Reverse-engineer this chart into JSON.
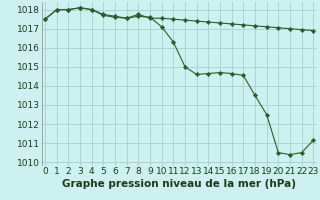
{
  "title": "Graphe pression niveau de la mer (hPa)",
  "background_color": "#cff0f0",
  "grid_color": "#aad4d4",
  "line_color": "#2d5a2d",
  "marker_color": "#2d5a2d",
  "x_values": [
    0,
    1,
    2,
    3,
    4,
    5,
    6,
    7,
    8,
    9,
    10,
    11,
    12,
    13,
    14,
    15,
    16,
    17,
    18,
    19,
    20,
    21,
    22,
    23
  ],
  "series1": [
    1017.5,
    1018.0,
    1018.0,
    1018.1,
    1018.0,
    1017.75,
    1017.65,
    1017.55,
    1017.75,
    1017.55,
    1017.55,
    1017.5,
    1017.45,
    1017.4,
    1017.35,
    1017.3,
    1017.25,
    1017.2,
    1017.15,
    1017.1,
    1017.05,
    1017.0,
    1016.95,
    1016.9
  ],
  "series2": [
    1017.5,
    1018.0,
    1018.0,
    1018.1,
    1018.0,
    1017.7,
    1017.6,
    1017.55,
    1017.65,
    1017.6,
    1017.1,
    1016.3,
    1015.0,
    1014.6,
    1014.65,
    1014.7,
    1014.65,
    1014.55,
    1013.5,
    1012.5,
    1010.5,
    1010.4,
    1010.5,
    1011.15
  ],
  "ylim": [
    1009.8,
    1018.4
  ],
  "yticks": [
    1010,
    1011,
    1012,
    1013,
    1014,
    1015,
    1016,
    1017,
    1018
  ],
  "xlim": [
    -0.3,
    23.3
  ],
  "tick_fontsize": 6.5,
  "title_fontsize": 7.5
}
